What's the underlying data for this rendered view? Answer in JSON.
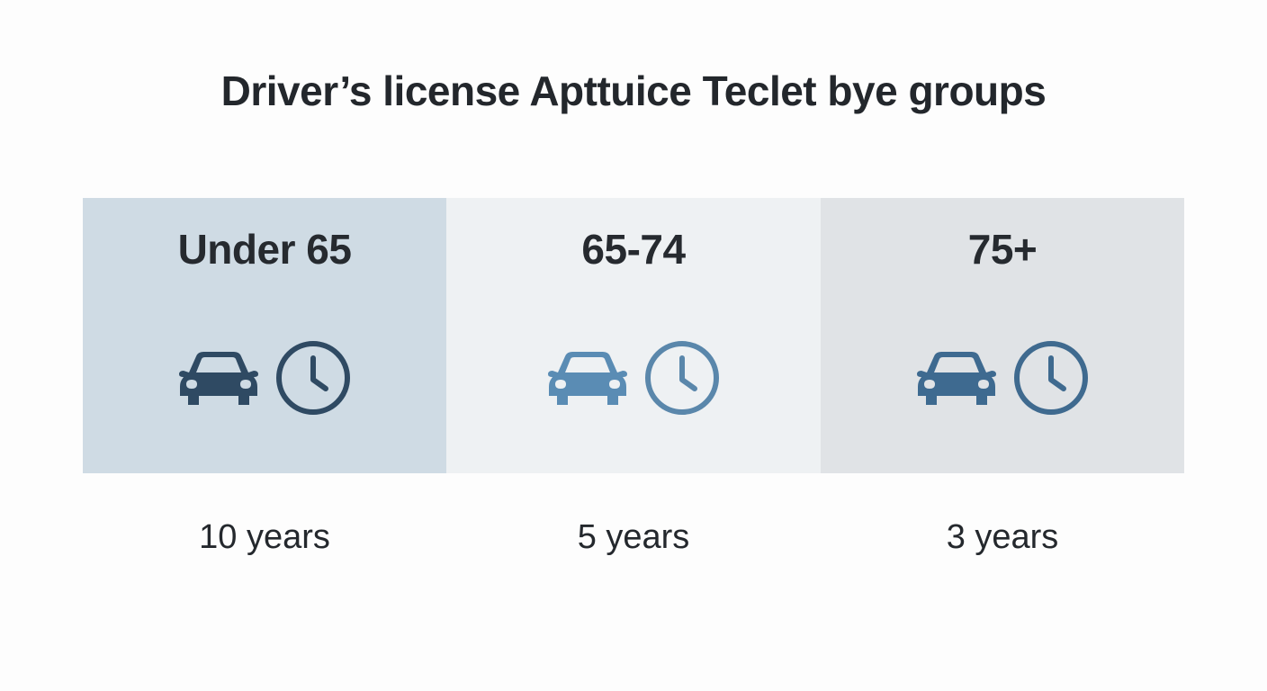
{
  "title": "Driver’s license Apttuice Teclet bye groups",
  "groups": [
    {
      "label": "Under 65",
      "duration": "10 years",
      "background": "#cfdbe4",
      "car_color": "#2f4a63",
      "clock_color": "#2f4a63",
      "icons": [
        "car-icon",
        "clock-icon"
      ]
    },
    {
      "label": "65-74",
      "duration": "5 years",
      "background": "#eef1f3",
      "car_color": "#5a8cb4",
      "clock_color": "#5a87ab",
      "icons": [
        "car-icon",
        "clock-icon"
      ]
    },
    {
      "label": "75+",
      "duration": "3 years",
      "background": "#e0e3e6",
      "car_color": "#3e6a90",
      "clock_color": "#3f6a8f",
      "icons": [
        "car-icon",
        "clock-icon"
      ]
    }
  ]
}
